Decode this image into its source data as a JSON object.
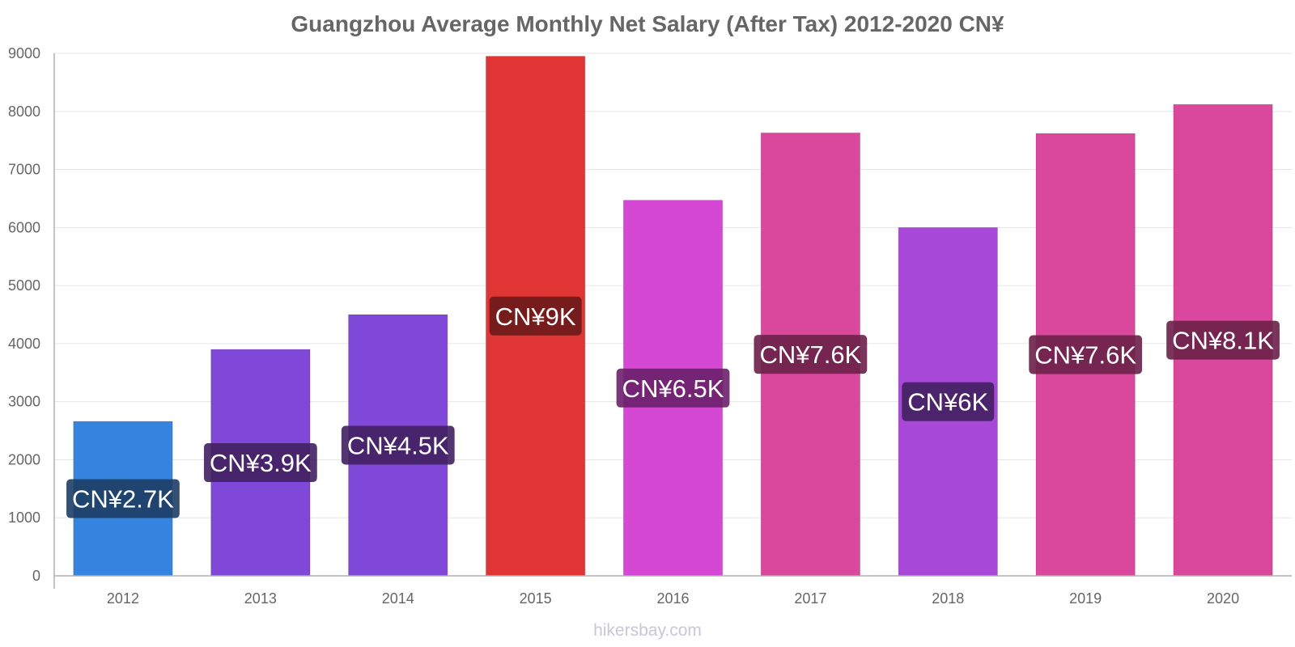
{
  "chart_data": {
    "type": "bar",
    "title": "Guangzhou Average Monthly Net Salary (After Tax) 2012-2020 CN¥",
    "xlabel": "",
    "ylabel": "",
    "categories": [
      "2012",
      "2013",
      "2014",
      "2015",
      "2016",
      "2017",
      "2018",
      "2019",
      "2020"
    ],
    "values": [
      2660,
      3900,
      4500,
      8950,
      6470,
      7630,
      6000,
      7620,
      8120
    ],
    "data_labels": [
      "CN¥2.7K",
      "CN¥3.9K",
      "CN¥4.5K",
      "CN¥9K",
      "CN¥6.5K",
      "CN¥7.6K",
      "CN¥6K",
      "CN¥7.6K",
      "CN¥8.1K"
    ],
    "bar_colors": [
      "#3584e0",
      "#8048d8",
      "#8048d8",
      "#e03535",
      "#d448d4",
      "#d9489c",
      "#a848d8",
      "#d9489c",
      "#d9489c"
    ],
    "label_box_colors": [
      "#1e3d64",
      "#402060",
      "#402060",
      "#6a1a1a",
      "#6a206a",
      "#6a2048",
      "#402060",
      "#6a2048",
      "#6a2048"
    ],
    "ylim": [
      0,
      9000
    ],
    "yticks": [
      0,
      1000,
      2000,
      3000,
      4000,
      5000,
      6000,
      7000,
      8000,
      9000
    ],
    "grid": true,
    "legend": "none"
  },
  "watermark": "hikersbay.com"
}
